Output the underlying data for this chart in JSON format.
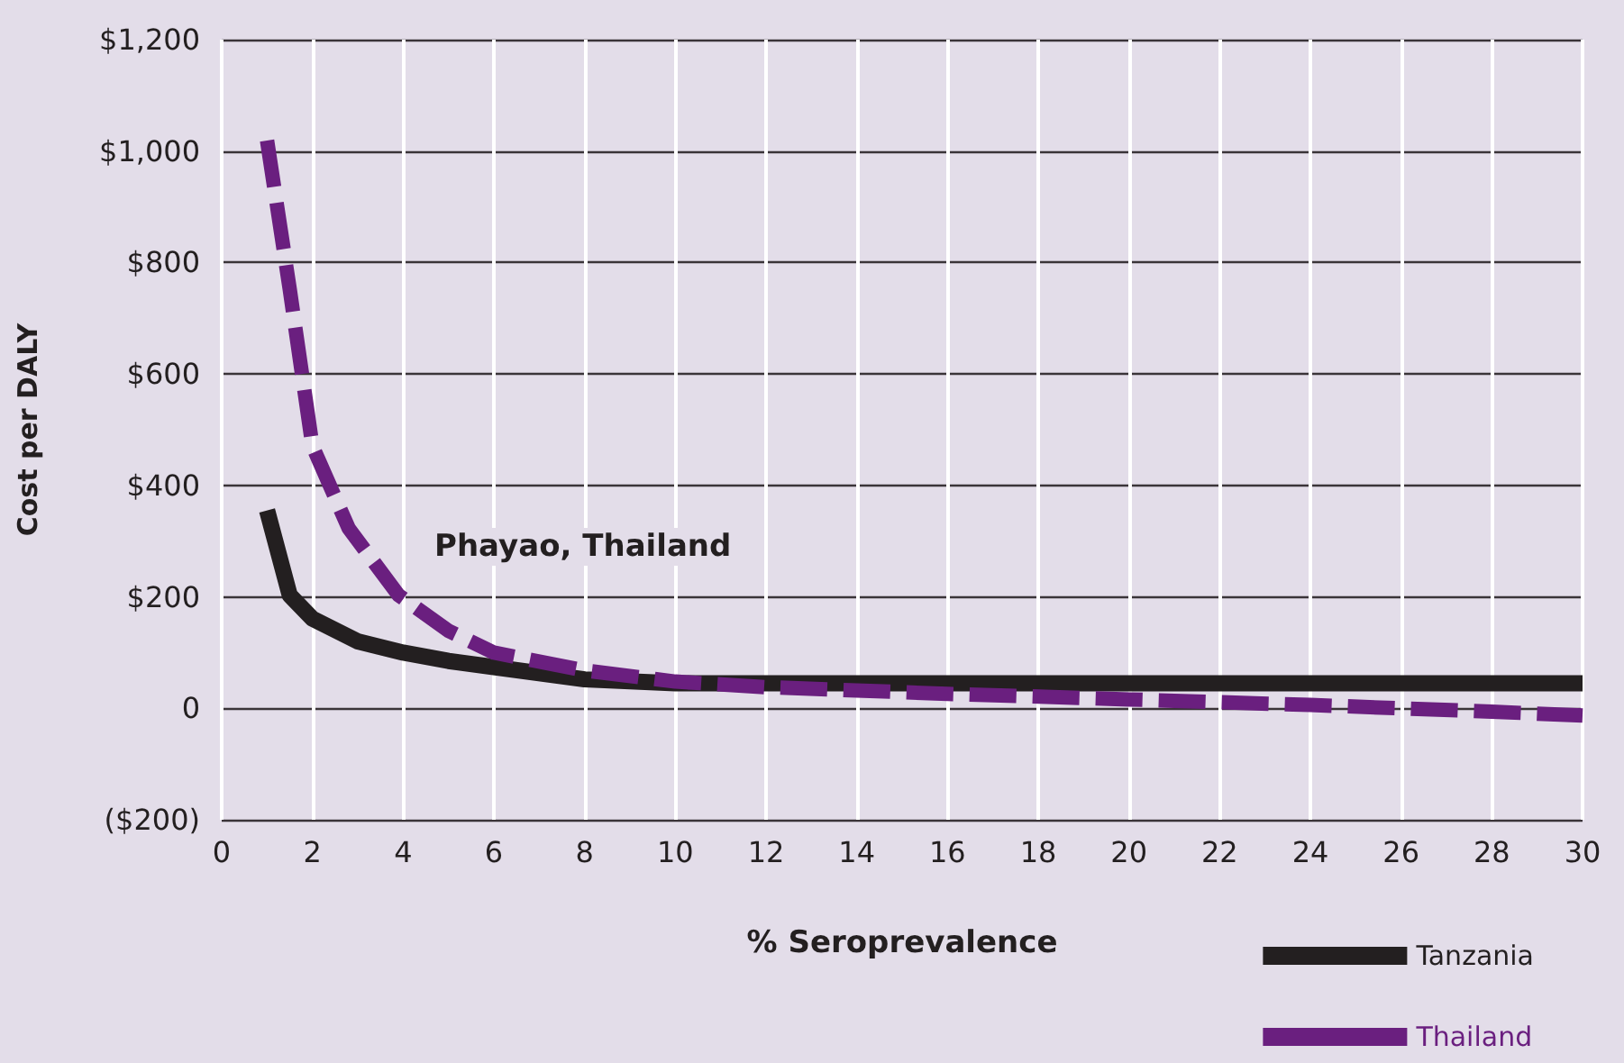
{
  "chart_data": {
    "type": "line",
    "xlabel": "% Seroprevalence",
    "ylabel": "Cost per DALY",
    "annotations": [
      "Phayao, Thailand"
    ],
    "series": [
      {
        "name": "Tanzania",
        "color": "#231f20",
        "line_style": "solid",
        "x": [
          1,
          1.5,
          2,
          3,
          4,
          5,
          6,
          8,
          10,
          12,
          16,
          20,
          25,
          30
        ],
        "values": [
          355,
          203,
          161,
          120,
          100,
          85,
          74,
          52,
          45,
          45,
          45,
          45,
          45,
          45
        ]
      },
      {
        "name": "Thailand",
        "color": "#6a1f7f",
        "line_style": "dashed",
        "x": [
          1,
          1.5,
          2,
          2.8,
          3.9,
          5,
          6,
          8,
          10,
          12,
          14,
          16,
          20,
          24,
          28,
          30
        ],
        "values": [
          1019,
          752,
          471,
          323,
          203,
          139,
          100,
          68,
          48,
          38,
          32,
          26,
          16,
          6,
          -6,
          -13
        ]
      }
    ],
    "xlim": [
      0,
      30
    ],
    "xticks": [
      0,
      2,
      4,
      6,
      8,
      10,
      12,
      14,
      16,
      18,
      20,
      22,
      24,
      26,
      28,
      30
    ],
    "ylim": [
      -200,
      1200
    ],
    "yticks": [
      {
        "value": -200,
        "label": "($200)"
      },
      0,
      {
        "value": 200,
        "label": "$200"
      },
      {
        "value": 400,
        "label": "$400"
      },
      {
        "value": 600,
        "label": "$600"
      },
      {
        "value": 800,
        "label": "$800"
      },
      {
        "value": 1000,
        "label": "$1,000"
      },
      {
        "value": 1200,
        "label": "$1,200"
      }
    ],
    "grid": true,
    "legend": "bottom right",
    "marker": "none"
  }
}
